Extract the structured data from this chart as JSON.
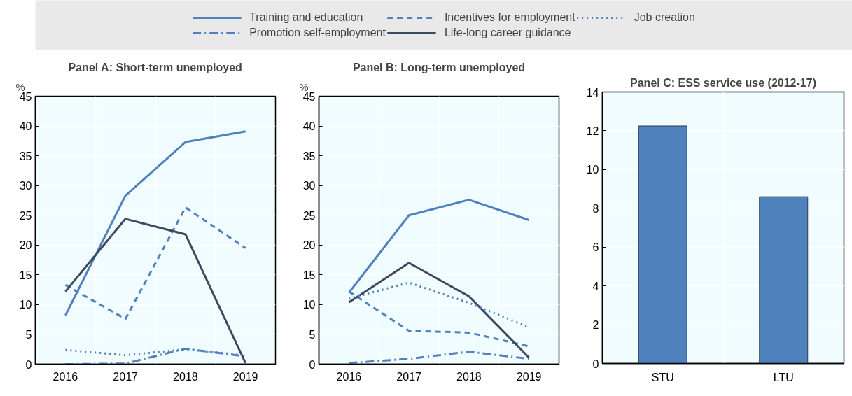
{
  "chart_data": [
    {
      "type": "line",
      "title": "Panel A: Short-term unemployed",
      "ylabel": "%",
      "categories": [
        "2016",
        "2017",
        "2018",
        "2019"
      ],
      "ylim": [
        0,
        45
      ],
      "yticks": [
        0,
        5,
        10,
        15,
        20,
        25,
        30,
        35,
        40,
        45
      ],
      "grid": true,
      "legend": "top",
      "series": [
        {
          "name": "Training and education",
          "color": "#4f81bd",
          "line_style": "solid",
          "values": [
            8.2,
            28.3,
            37.3,
            39.1
          ]
        },
        {
          "name": "Promotion self-employment",
          "color": "#4f81bd",
          "line_style": "dashdot",
          "values": [
            0.0,
            0.1,
            2.6,
            1.3
          ]
        },
        {
          "name": "Incentives for employment",
          "color": "#4f81bd",
          "line_style": "dashed",
          "values": [
            13.3,
            7.6,
            26.3,
            19.5
          ]
        },
        {
          "name": "Life-long career guidance",
          "color": "#3b4a5e",
          "line_style": "solid",
          "values": [
            12.2,
            24.4,
            21.8,
            0.2
          ]
        },
        {
          "name": "Job creation",
          "color": "#4f81bd",
          "line_style": "dotted",
          "values": [
            2.4,
            1.5,
            2.5,
            1.5
          ]
        }
      ]
    },
    {
      "type": "line",
      "title": "Panel B: Long-term unemployed",
      "ylabel": "%",
      "categories": [
        "2016",
        "2017",
        "2018",
        "2019"
      ],
      "ylim": [
        0,
        45
      ],
      "yticks": [
        0,
        5,
        10,
        15,
        20,
        25,
        30,
        35,
        40,
        45
      ],
      "grid": true,
      "series": [
        {
          "color": "#4f81bd",
          "line_style": "solid",
          "values": [
            12.0,
            25.0,
            27.6,
            24.2
          ]
        },
        {
          "color": "#4f81bd",
          "line_style": "dashdot",
          "values": [
            0.2,
            0.9,
            2.1,
            0.9
          ]
        },
        {
          "color": "#4f81bd",
          "line_style": "dashed",
          "values": [
            12.2,
            5.6,
            5.3,
            3.0
          ]
        },
        {
          "color": "#3b4a5e",
          "line_style": "solid",
          "values": [
            10.4,
            17.0,
            11.4,
            1.1
          ]
        },
        {
          "color": "#4f81bd",
          "line_style": "dotted",
          "values": [
            11.0,
            13.7,
            10.3,
            6.2
          ]
        }
      ]
    },
    {
      "type": "bar",
      "title": "Panel C: ESS service use (2012-17)",
      "categories": [
        "STU",
        "LTU"
      ],
      "ylim": [
        0,
        14
      ],
      "yticks": [
        0,
        2,
        4,
        6,
        8,
        10,
        12,
        14
      ],
      "grid": true,
      "values": [
        12.25,
        8.6
      ],
      "color": "#4f81bd"
    }
  ]
}
